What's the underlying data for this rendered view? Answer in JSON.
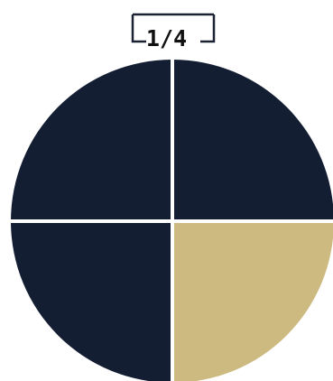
{
  "label": {
    "fraction": "1/4"
  },
  "fraction": {
    "shaded_parts": 1,
    "total_parts": 4,
    "shaded_quadrant": "bottom-right"
  },
  "colors": {
    "unshaded": "#141e33",
    "shaded": "#cdba80",
    "divider": "#ffffff",
    "bracket": "#1a2233",
    "label": "#111111"
  }
}
